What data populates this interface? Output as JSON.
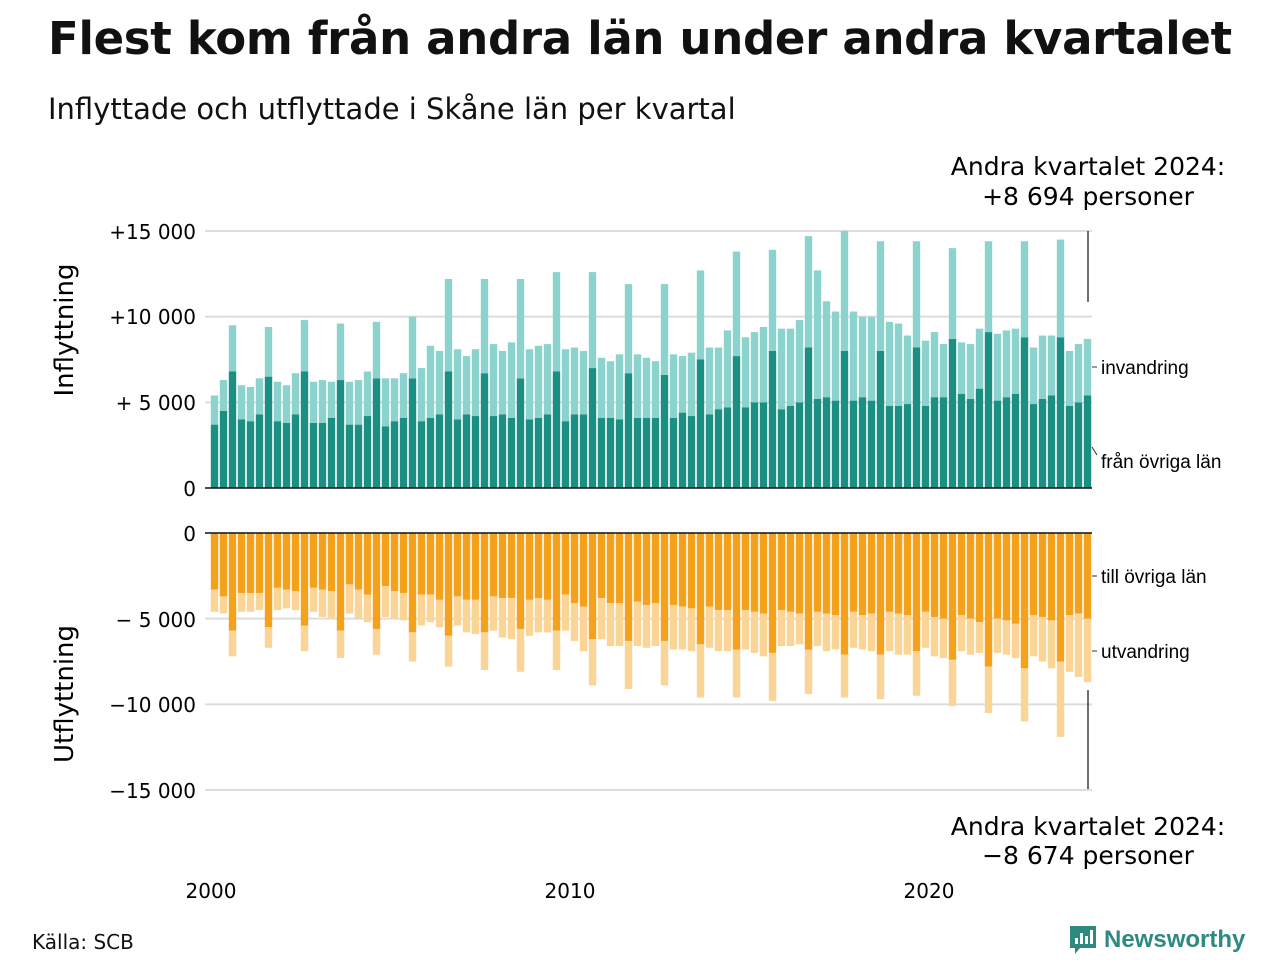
{
  "title": "Flest kom från andra län under andra kvartalet",
  "subtitle": "Inflyttade och utflyttade i Skåne län per kvartal",
  "source": "Källa: SCB",
  "brand": "Newsworthy",
  "colors": {
    "in_dark": "#1a8f82",
    "in_light": "#8bd3cc",
    "out_dark": "#f4a11c",
    "out_light": "#fad595",
    "brand": "#2e8a80"
  },
  "chart_data": {
    "type": "bar",
    "stacked": true,
    "x_axis": {
      "label": "",
      "ticks": [
        "2000",
        "2010",
        "2020"
      ]
    },
    "panels": [
      {
        "name": "Inflyttning",
        "ylabel": "Inflyttning",
        "ylim": [
          0,
          15000
        ],
        "yticks": [
          "0",
          "+ 5 000",
          "+10 000",
          "+15 000"
        ],
        "series_labels": [
          "från övriga län",
          "invandring"
        ],
        "annotation": [
          "Andra kvartalet 2024:",
          "+8 694 personer"
        ]
      },
      {
        "name": "Utflyttning",
        "ylabel": "Utflyttning",
        "ylim": [
          -15000,
          0
        ],
        "yticks": [
          "0",
          "− 5 000",
          "−10 000",
          "−15 000"
        ],
        "series_labels": [
          "till övriga län",
          "utvandring"
        ],
        "annotation": [
          "Andra kvartalet 2024:",
          "−8 674 personer"
        ]
      }
    ],
    "quarters": [
      "2000K1",
      "2000K2",
      "2000K3",
      "2000K4",
      "2001K1",
      "2001K2",
      "2001K3",
      "2001K4",
      "2002K1",
      "2002K2",
      "2002K3",
      "2002K4",
      "2003K1",
      "2003K2",
      "2003K3",
      "2003K4",
      "2004K1",
      "2004K2",
      "2004K3",
      "2004K4",
      "2005K1",
      "2005K2",
      "2005K3",
      "2005K4",
      "2006K1",
      "2006K2",
      "2006K3",
      "2006K4",
      "2007K1",
      "2007K2",
      "2007K3",
      "2007K4",
      "2008K1",
      "2008K2",
      "2008K3",
      "2008K4",
      "2009K1",
      "2009K2",
      "2009K3",
      "2009K4",
      "2010K1",
      "2010K2",
      "2010K3",
      "2010K4",
      "2011K1",
      "2011K2",
      "2011K3",
      "2011K4",
      "2012K1",
      "2012K2",
      "2012K3",
      "2012K4",
      "2013K1",
      "2013K2",
      "2013K3",
      "2013K4",
      "2014K1",
      "2014K2",
      "2014K3",
      "2014K4",
      "2015K1",
      "2015K2",
      "2015K3",
      "2015K4",
      "2016K1",
      "2016K2",
      "2016K3",
      "2016K4",
      "2017K1",
      "2017K2",
      "2017K3",
      "2017K4",
      "2018K1",
      "2018K2",
      "2018K3",
      "2018K4",
      "2019K1",
      "2019K2",
      "2019K3",
      "2019K4",
      "2020K1",
      "2020K2",
      "2020K3",
      "2020K4",
      "2021K1",
      "2021K2",
      "2021K3",
      "2021K4",
      "2022K1",
      "2022K2",
      "2022K3",
      "2022K4",
      "2023K1",
      "2023K2",
      "2023K3",
      "2023K4",
      "2024K1",
      "2024K2"
    ],
    "series": [
      {
        "name": "från övriga län",
        "panel": 0,
        "values": [
          3700,
          4500,
          6800,
          4000,
          3900,
          4300,
          6500,
          3900,
          3800,
          4300,
          6800,
          3800,
          3800,
          4100,
          6300,
          3700,
          3700,
          4200,
          6400,
          3600,
          3900,
          4100,
          6400,
          3900,
          4100,
          4300,
          6800,
          4000,
          4300,
          4200,
          6700,
          4200,
          4300,
          4100,
          6400,
          4000,
          4100,
          4300,
          6800,
          3900,
          4300,
          4300,
          7000,
          4100,
          4100,
          4000,
          6700,
          4100,
          4100,
          4100,
          6600,
          4100,
          4400,
          4200,
          7500,
          4300,
          4600,
          4700,
          7700,
          4700,
          5000,
          5000,
          8000,
          4600,
          4800,
          5000,
          8200,
          5200,
          5300,
          5100,
          8000,
          5100,
          5300,
          5100,
          8000,
          4800,
          4800,
          4900,
          8200,
          4800,
          5300,
          5300,
          8700,
          5500,
          5200,
          5800,
          9100,
          5100,
          5300,
          5500,
          8800,
          4900,
          5200,
          5400,
          8800,
          4800,
          5000,
          5400
        ]
      },
      {
        "name": "invandring",
        "panel": 0,
        "values": [
          1700,
          1800,
          2700,
          2000,
          2000,
          2100,
          2900,
          2300,
          2200,
          2400,
          3000,
          2400,
          2500,
          2100,
          3300,
          2500,
          2600,
          2600,
          3300,
          2800,
          2500,
          2600,
          3600,
          3100,
          4200,
          3700,
          5400,
          4100,
          3400,
          3900,
          5500,
          4200,
          3700,
          4400,
          5800,
          4100,
          4200,
          4100,
          5800,
          4200,
          3900,
          3700,
          5600,
          3500,
          3300,
          3800,
          5200,
          3700,
          3500,
          3300,
          5300,
          3700,
          3300,
          3700,
          5200,
          3900,
          3600,
          4500,
          6100,
          4100,
          4100,
          4400,
          5900,
          4700,
          4500,
          4800,
          6500,
          7500,
          5600,
          5200,
          7000,
          5200,
          4700,
          4900,
          6400,
          4900,
          4800,
          4000,
          6200,
          3800,
          3800,
          3100,
          5300,
          3000,
          3200,
          3500,
          5300,
          3900,
          3900,
          3800,
          5600,
          3300,
          3700,
          3500,
          5700,
          3200,
          3400,
          3300
        ]
      },
      {
        "name": "till övriga län",
        "panel": 1,
        "values": [
          -3300,
          -3700,
          -5700,
          -3500,
          -3500,
          -3500,
          -5500,
          -3200,
          -3300,
          -3400,
          -5400,
          -3200,
          -3300,
          -3400,
          -5700,
          -3000,
          -3300,
          -3600,
          -5600,
          -3100,
          -3400,
          -3500,
          -5800,
          -3600,
          -3600,
          -3900,
          -6000,
          -3700,
          -3900,
          -3900,
          -5800,
          -3700,
          -3800,
          -3800,
          -5600,
          -3900,
          -3800,
          -3900,
          -5700,
          -3600,
          -4100,
          -4300,
          -6200,
          -3800,
          -4100,
          -4100,
          -6300,
          -4000,
          -4200,
          -4100,
          -6300,
          -4200,
          -4300,
          -4400,
          -6500,
          -4300,
          -4500,
          -4500,
          -6800,
          -4500,
          -4600,
          -4700,
          -7000,
          -4500,
          -4600,
          -4700,
          -6800,
          -4600,
          -4700,
          -4800,
          -7100,
          -4600,
          -4800,
          -4700,
          -7100,
          -4600,
          -4700,
          -4800,
          -6900,
          -4600,
          -4900,
          -5000,
          -7400,
          -4800,
          -5000,
          -5200,
          -7800,
          -5000,
          -5100,
          -5300,
          -7900,
          -4800,
          -4900,
          -5100,
          -7500,
          -4800,
          -4700,
          -5000
        ]
      },
      {
        "name": "utvandring",
        "panel": 1,
        "values": [
          -1300,
          -1000,
          -1500,
          -1100,
          -1100,
          -1000,
          -1200,
          -1300,
          -1100,
          -1100,
          -1500,
          -1400,
          -1600,
          -1600,
          -1600,
          -1700,
          -1700,
          -1600,
          -1500,
          -1800,
          -1600,
          -1600,
          -1700,
          -1800,
          -1600,
          -1600,
          -1800,
          -1700,
          -1900,
          -2000,
          -2200,
          -2000,
          -2300,
          -2400,
          -2500,
          -2100,
          -2000,
          -1900,
          -2300,
          -2100,
          -2200,
          -2600,
          -2700,
          -2400,
          -2500,
          -2500,
          -2800,
          -2600,
          -2500,
          -2500,
          -2600,
          -2600,
          -2500,
          -2500,
          -3100,
          -2400,
          -2400,
          -2400,
          -2800,
          -2300,
          -2400,
          -2500,
          -2800,
          -2100,
          -2000,
          -1800,
          -2600,
          -2000,
          -2200,
          -2000,
          -2500,
          -2100,
          -2000,
          -2200,
          -2600,
          -2300,
          -2400,
          -2300,
          -2600,
          -2100,
          -2300,
          -2300,
          -2700,
          -2100,
          -2100,
          -1800,
          -2700,
          -2000,
          -2000,
          -2000,
          -3100,
          -2400,
          -2600,
          -2800,
          -4400,
          -3300,
          -3700,
          -3700
        ]
      }
    ]
  }
}
